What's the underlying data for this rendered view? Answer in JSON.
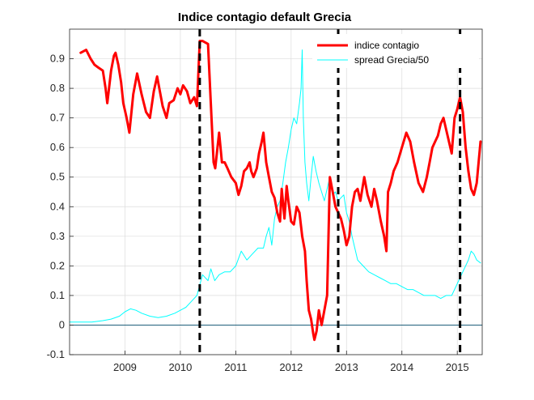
{
  "colors": {
    "contagion": "#ff0000",
    "spread": "#00ffff",
    "events": "#000000",
    "zero_line": "#1f5f7a",
    "grid": "#dcdcdc",
    "axes": "#262626"
  },
  "chart_data": {
    "type": "line",
    "title": "Indice contagio default Grecia",
    "xlabel": "",
    "ylabel": "",
    "xlim": [
      2008.0,
      2015.45
    ],
    "ylim": [
      -0.1,
      1.0
    ],
    "x_ticks": [
      2009,
      2010,
      2011,
      2012,
      2013,
      2014,
      2015
    ],
    "x_tick_labels": [
      "2009",
      "2010",
      "2011",
      "2012",
      "2013",
      "2014",
      "2015"
    ],
    "y_ticks": [
      -0.1,
      0,
      0.1,
      0.2,
      0.3,
      0.4,
      0.5,
      0.6,
      0.7,
      0.8,
      0.9
    ],
    "y_tick_labels": [
      "-0.1",
      "0",
      "0.1",
      "0.2",
      "0.3",
      "0.4",
      "0.5",
      "0.6",
      "0.7",
      "0.8",
      "0.9"
    ],
    "grid": true,
    "legend_position": "top-right",
    "zero_line": 0,
    "event_lines_x": [
      2010.35,
      2012.85,
      2015.05
    ],
    "series": [
      {
        "name": "indice contagio",
        "color": "#ff0000",
        "x": [
          2008.2,
          2008.3,
          2008.38,
          2008.45,
          2008.52,
          2008.6,
          2008.65,
          2008.68,
          2008.75,
          2008.8,
          2008.83,
          2008.88,
          2008.93,
          2008.97,
          2009.03,
          2009.08,
          2009.15,
          2009.22,
          2009.3,
          2009.38,
          2009.45,
          2009.52,
          2009.58,
          2009.62,
          2009.68,
          2009.75,
          2009.8,
          2009.88,
          2009.95,
          2010.0,
          2010.05,
          2010.12,
          2010.18,
          2010.25,
          2010.3,
          2010.35,
          2010.4,
          2010.5,
          2010.6,
          2010.63,
          2010.7,
          2010.75,
          2010.8,
          2010.85,
          2010.92,
          2011.0,
          2011.05,
          2011.1,
          2011.15,
          2011.2,
          2011.25,
          2011.28,
          2011.32,
          2011.38,
          2011.42,
          2011.47,
          2011.5,
          2011.55,
          2011.6,
          2011.65,
          2011.7,
          2011.75,
          2011.8,
          2011.83,
          2011.86,
          2011.88,
          2011.92,
          2011.95,
          2012.0,
          2012.05,
          2012.1,
          2012.15,
          2012.2,
          2012.25,
          2012.28,
          2012.32,
          2012.36,
          2012.4,
          2012.42,
          2012.46,
          2012.5,
          2012.55,
          2012.6,
          2012.65,
          2012.7,
          2012.75,
          2012.8,
          2012.85,
          2012.9,
          2012.95,
          2013.0,
          2013.05,
          2013.1,
          2013.15,
          2013.2,
          2013.25,
          2013.32,
          2013.38,
          2013.45,
          2013.5,
          2013.55,
          2013.62,
          2013.68,
          2013.72,
          2013.75,
          2013.8,
          2013.85,
          2013.92,
          2014.0,
          2014.08,
          2014.15,
          2014.22,
          2014.3,
          2014.38,
          2014.45,
          2014.5,
          2014.55,
          2014.6,
          2014.65,
          2014.7,
          2014.75,
          2014.8,
          2014.85,
          2014.9,
          2014.95,
          2015.0,
          2015.05,
          2015.1,
          2015.15,
          2015.2,
          2015.25,
          2015.3,
          2015.35,
          2015.42
        ],
        "values": [
          0.92,
          0.93,
          0.9,
          0.88,
          0.87,
          0.86,
          0.8,
          0.75,
          0.86,
          0.91,
          0.92,
          0.88,
          0.82,
          0.75,
          0.7,
          0.65,
          0.78,
          0.85,
          0.78,
          0.72,
          0.7,
          0.79,
          0.84,
          0.8,
          0.74,
          0.7,
          0.75,
          0.76,
          0.8,
          0.78,
          0.81,
          0.79,
          0.75,
          0.77,
          0.74,
          0.96,
          0.96,
          0.95,
          0.55,
          0.53,
          0.65,
          0.55,
          0.55,
          0.53,
          0.5,
          0.48,
          0.44,
          0.47,
          0.52,
          0.53,
          0.55,
          0.52,
          0.5,
          0.53,
          0.58,
          0.62,
          0.65,
          0.55,
          0.5,
          0.45,
          0.43,
          0.38,
          0.35,
          0.46,
          0.4,
          0.36,
          0.47,
          0.42,
          0.35,
          0.34,
          0.4,
          0.38,
          0.3,
          0.25,
          0.15,
          0.05,
          0.02,
          -0.03,
          -0.05,
          -0.02,
          0.05,
          0.0,
          0.05,
          0.1,
          0.5,
          0.45,
          0.4,
          0.38,
          0.36,
          0.32,
          0.27,
          0.3,
          0.4,
          0.45,
          0.46,
          0.42,
          0.5,
          0.44,
          0.4,
          0.46,
          0.42,
          0.35,
          0.3,
          0.25,
          0.45,
          0.48,
          0.52,
          0.55,
          0.6,
          0.65,
          0.62,
          0.55,
          0.48,
          0.45,
          0.5,
          0.55,
          0.6,
          0.62,
          0.64,
          0.68,
          0.7,
          0.66,
          0.62,
          0.58,
          0.7,
          0.73,
          0.77,
          0.72,
          0.6,
          0.52,
          0.46,
          0.44,
          0.48,
          0.62
        ]
      },
      {
        "name": "spread Grecia/50",
        "color": "#00ffff",
        "x": [
          2008.0,
          2008.2,
          2008.4,
          2008.6,
          2008.75,
          2008.9,
          2009.0,
          2009.1,
          2009.2,
          2009.3,
          2009.45,
          2009.6,
          2009.75,
          2009.9,
          2010.0,
          2010.1,
          2010.2,
          2010.3,
          2010.4,
          2010.5,
          2010.55,
          2010.62,
          2010.7,
          2010.8,
          2010.9,
          2011.0,
          2011.1,
          2011.2,
          2011.3,
          2011.4,
          2011.5,
          2011.55,
          2011.6,
          2011.65,
          2011.7,
          2011.75,
          2011.8,
          2011.85,
          2011.9,
          2011.95,
          2012.0,
          2012.05,
          2012.1,
          2012.15,
          2012.18,
          2012.2,
          2012.22,
          2012.25,
          2012.28,
          2012.32,
          2012.36,
          2012.4,
          2012.45,
          2012.5,
          2012.55,
          2012.6,
          2012.65,
          2012.7,
          2012.75,
          2012.8,
          2012.85,
          2012.9,
          2012.95,
          2013.0,
          2013.05,
          2013.1,
          2013.2,
          2013.3,
          2013.4,
          2013.5,
          2013.6,
          2013.7,
          2013.8,
          2013.9,
          2014.0,
          2014.1,
          2014.2,
          2014.3,
          2014.4,
          2014.5,
          2014.6,
          2014.7,
          2014.8,
          2014.9,
          2015.0,
          2015.05,
          2015.1,
          2015.15,
          2015.2,
          2015.25,
          2015.3,
          2015.35,
          2015.42
        ],
        "values": [
          0.01,
          0.01,
          0.01,
          0.015,
          0.02,
          0.03,
          0.045,
          0.055,
          0.05,
          0.04,
          0.03,
          0.025,
          0.03,
          0.04,
          0.05,
          0.06,
          0.08,
          0.1,
          0.17,
          0.15,
          0.19,
          0.15,
          0.17,
          0.18,
          0.18,
          0.2,
          0.25,
          0.22,
          0.24,
          0.26,
          0.26,
          0.3,
          0.33,
          0.27,
          0.36,
          0.4,
          0.42,
          0.48,
          0.55,
          0.6,
          0.66,
          0.7,
          0.68,
          0.75,
          0.8,
          0.93,
          0.7,
          0.55,
          0.48,
          0.42,
          0.5,
          0.57,
          0.52,
          0.48,
          0.45,
          0.42,
          0.46,
          0.5,
          0.44,
          0.45,
          0.42,
          0.43,
          0.44,
          0.38,
          0.35,
          0.3,
          0.22,
          0.2,
          0.18,
          0.17,
          0.16,
          0.15,
          0.14,
          0.14,
          0.13,
          0.12,
          0.12,
          0.11,
          0.1,
          0.1,
          0.1,
          0.09,
          0.1,
          0.1,
          0.14,
          0.16,
          0.18,
          0.2,
          0.22,
          0.25,
          0.24,
          0.22,
          0.21
        ]
      }
    ]
  }
}
